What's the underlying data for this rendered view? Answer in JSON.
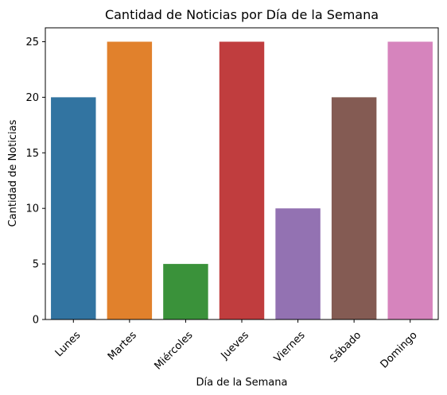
{
  "chart_data": {
    "type": "bar",
    "title": "Cantidad de Noticias por Día de la Semana",
    "xlabel": "Día de la Semana",
    "ylabel": "Cantidad de Noticias",
    "categories": [
      "Lunes",
      "Martes",
      "Miércoles",
      "Jueves",
      "Viernes",
      "Sábado",
      "Domingo"
    ],
    "values": [
      20,
      25,
      5,
      25,
      10,
      20,
      25
    ],
    "colors": [
      "#3274a1",
      "#e1812c",
      "#3a923a",
      "#c03d3e",
      "#9372b2",
      "#845b53",
      "#d684bd"
    ],
    "ylim": [
      0,
      26.25
    ],
    "yticks": [
      0,
      5,
      10,
      15,
      20,
      25
    ],
    "grid": false,
    "legend": "none"
  }
}
